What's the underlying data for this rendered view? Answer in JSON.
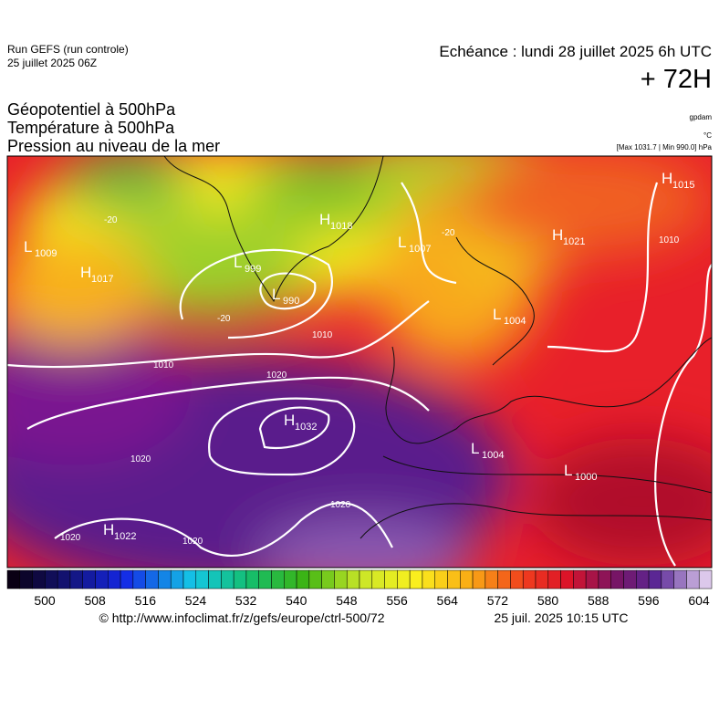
{
  "header": {
    "run": "Run GEFS (run controle)",
    "date": "25 juillet 2025 06Z",
    "echeance": "Echéance : lundi 28 juillet 2025 6h UTC",
    "lead": "+ 72H"
  },
  "titles": [
    "Géopotentiel à 500hPa",
    "Température à 500hPa",
    "Pression au niveau de la mer"
  ],
  "units": [
    "gpdam",
    "°C",
    "[Max 1031.7 | Min 990.0] hPa"
  ],
  "centers": [
    {
      "type": "H",
      "value": "1015"
    },
    {
      "type": "L",
      "value": "1009"
    },
    {
      "type": "H",
      "value": "1017"
    },
    {
      "type": "H",
      "value": "1018"
    },
    {
      "type": "L",
      "value": "999"
    },
    {
      "type": "L",
      "value": "990"
    },
    {
      "type": "L",
      "value": "1007"
    },
    {
      "type": "H",
      "value": "1021"
    },
    {
      "type": "L",
      "value": "1004"
    },
    {
      "type": "H",
      "value": "1032"
    },
    {
      "type": "L",
      "value": "1004"
    },
    {
      "type": "L",
      "value": "1000"
    },
    {
      "type": "H",
      "value": "1022"
    }
  ],
  "contour_labels": [
    "1010",
    "1010",
    "1020",
    "1020",
    "1020",
    "1020",
    "1020",
    "1010",
    "-20",
    "-20",
    "-20"
  ],
  "colorbar": {
    "ticks": [
      "500",
      "508",
      "516",
      "524",
      "532",
      "540",
      "548",
      "556",
      "564",
      "572",
      "580",
      "588",
      "596",
      "604"
    ]
  },
  "footer": {
    "url": "© http://www.infoclimat.fr/z/gefs/europe/ctrl-500/72",
    "time": "25 juil. 2025 10:15 UTC"
  }
}
